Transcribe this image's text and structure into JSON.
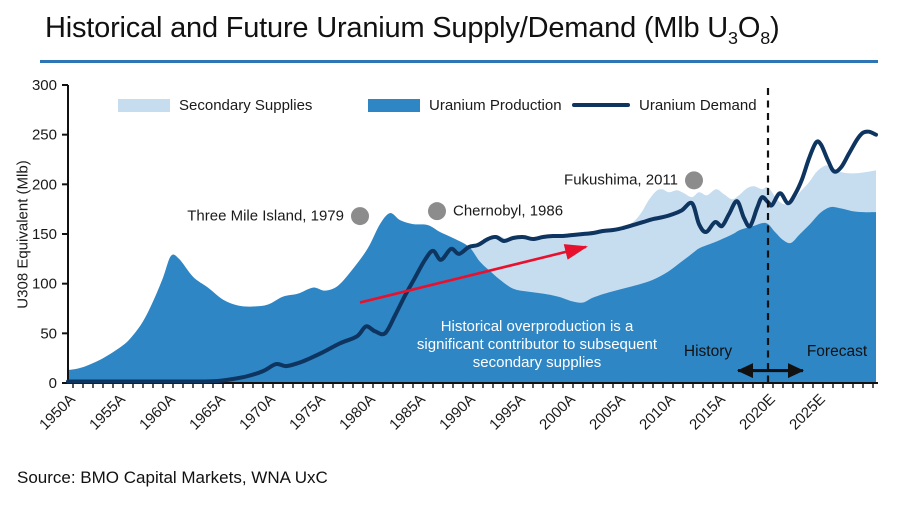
{
  "title": {
    "main": "Historical and Future Uranium Supply/Demand (Mlb U",
    "sub_a": "3",
    "mid": "O",
    "sub_b": "8",
    "end": ")"
  },
  "source": "Source: BMO Capital Markets, WNA UxC",
  "chart_data": {
    "type": "area",
    "title": "Historical and Future Uranium Supply/Demand (Mlb U3O8)",
    "xlabel": "",
    "ylabel": "U308 Equivalent (Mlb)",
    "x_range": [
      1949.5,
      2030.5
    ],
    "y_range": [
      0,
      300
    ],
    "y_ticks": [
      0,
      50,
      100,
      150,
      200,
      250,
      300
    ],
    "x_ticks": [
      {
        "year": 1950,
        "label": "1950A"
      },
      {
        "year": 1955,
        "label": "1955A"
      },
      {
        "year": 1960,
        "label": "1960A"
      },
      {
        "year": 1965,
        "label": "1965A"
      },
      {
        "year": 1970,
        "label": "1970A"
      },
      {
        "year": 1975,
        "label": "1975A"
      },
      {
        "year": 1980,
        "label": "1980A"
      },
      {
        "year": 1985,
        "label": "1985A"
      },
      {
        "year": 1990,
        "label": "1990A"
      },
      {
        "year": 1995,
        "label": "1995A"
      },
      {
        "year": 2000,
        "label": "2000A"
      },
      {
        "year": 2005,
        "label": "2005A"
      },
      {
        "year": 2010,
        "label": "2010A"
      },
      {
        "year": 2015,
        "label": "2015A"
      },
      {
        "year": 2020,
        "label": "2020E"
      },
      {
        "year": 2025,
        "label": "2025E"
      }
    ],
    "minor_tick_step": 1,
    "grid": false,
    "legend_position": "top-inside",
    "legend": [
      {
        "label": "Secondary Supplies",
        "swatch": "area-light"
      },
      {
        "label": "Uranium Production",
        "swatch": "area-medium"
      },
      {
        "label": "Uranium Demand",
        "swatch": "line"
      }
    ],
    "colors": {
      "secondary_supplies": "#C6DCEF",
      "uranium_production": "#2E86C5",
      "uranium_demand": "#0E3460",
      "title_rule": "#2E75B6",
      "event_dot": "#8C8C8C",
      "red_arrow": "#E8112D",
      "axis": "#111111"
    },
    "series": [
      {
        "name": "Uranium Production",
        "type": "area",
        "points": [
          [
            1949.5,
            13
          ],
          [
            1951,
            16
          ],
          [
            1953,
            25
          ],
          [
            1955,
            38
          ],
          [
            1956,
            48
          ],
          [
            1957,
            62
          ],
          [
            1958,
            82
          ],
          [
            1959,
            106
          ],
          [
            1959.8,
            128
          ],
          [
            1960.6,
            125
          ],
          [
            1962,
            107
          ],
          [
            1963.5,
            96
          ],
          [
            1965,
            84
          ],
          [
            1966.5,
            78
          ],
          [
            1968,
            77
          ],
          [
            1969.5,
            79
          ],
          [
            1971,
            87
          ],
          [
            1972.5,
            90
          ],
          [
            1974,
            96
          ],
          [
            1975.2,
            93
          ],
          [
            1976.5,
            98
          ],
          [
            1978,
            115
          ],
          [
            1979.5,
            136
          ],
          [
            1980.7,
            160
          ],
          [
            1981.7,
            171
          ],
          [
            1982.7,
            164
          ],
          [
            1984,
            160
          ],
          [
            1985.5,
            159
          ],
          [
            1986.7,
            152
          ],
          [
            1988,
            146
          ],
          [
            1989.6,
            137
          ],
          [
            1990.7,
            122
          ],
          [
            1992,
            110
          ],
          [
            1992.7,
            104
          ],
          [
            1994,
            95
          ],
          [
            1995.5,
            92
          ],
          [
            1997,
            90
          ],
          [
            1998.5,
            87
          ],
          [
            2000,
            82
          ],
          [
            2001,
            81
          ],
          [
            2002,
            86
          ],
          [
            2003.5,
            91
          ],
          [
            2005,
            95
          ],
          [
            2006.5,
            99
          ],
          [
            2008,
            104
          ],
          [
            2009.5,
            112
          ],
          [
            2010.7,
            121
          ],
          [
            2012,
            131
          ],
          [
            2012.7,
            136
          ],
          [
            2014,
            141
          ],
          [
            2014.7,
            144
          ],
          [
            2016,
            150
          ],
          [
            2016.7,
            154
          ],
          [
            2018,
            158
          ],
          [
            2019.3,
            161
          ],
          [
            2020.2,
            152
          ],
          [
            2021,
            144
          ],
          [
            2021.8,
            141
          ],
          [
            2022.7,
            150
          ],
          [
            2023.7,
            160
          ],
          [
            2024.7,
            171
          ],
          [
            2025.7,
            177
          ],
          [
            2026.7,
            176
          ],
          [
            2028,
            173
          ],
          [
            2029,
            172
          ],
          [
            2030.3,
            172
          ]
        ]
      },
      {
        "name": "Secondary Supplies",
        "type": "area-top",
        "points": [
          [
            1989.6,
            137
          ],
          [
            1990.5,
            141
          ],
          [
            1991.5,
            146
          ],
          [
            1992.5,
            148
          ],
          [
            1993.2,
            146
          ],
          [
            1994,
            147
          ],
          [
            1995,
            148
          ],
          [
            1996,
            147
          ],
          [
            1997,
            148
          ],
          [
            1998,
            149
          ],
          [
            1999,
            149
          ],
          [
            2000,
            150
          ],
          [
            2001,
            151
          ],
          [
            2002,
            152
          ],
          [
            2003,
            154
          ],
          [
            2004,
            155
          ],
          [
            2005,
            157
          ],
          [
            2006,
            162
          ],
          [
            2006.8,
            171
          ],
          [
            2007.5,
            183
          ],
          [
            2008.3,
            193
          ],
          [
            2008.9,
            195
          ],
          [
            2009.6,
            192
          ],
          [
            2010.4,
            194
          ],
          [
            2011.1,
            191
          ],
          [
            2011.9,
            187
          ],
          [
            2012.6,
            192
          ],
          [
            2013.4,
            189
          ],
          [
            2014.3,
            195
          ],
          [
            2015.1,
            190
          ],
          [
            2015.9,
            185
          ],
          [
            2016.6,
            189
          ],
          [
            2017.4,
            196
          ],
          [
            2018.1,
            198
          ],
          [
            2018.9,
            195
          ],
          [
            2019.5,
            197
          ],
          [
            2020.4,
            185
          ],
          [
            2021.1,
            180
          ],
          [
            2021.9,
            182
          ],
          [
            2022.6,
            191
          ],
          [
            2023.6,
            202
          ],
          [
            2024.4,
            213
          ],
          [
            2025.3,
            219
          ],
          [
            2026.1,
            216
          ],
          [
            2026.9,
            212
          ],
          [
            2028,
            211
          ],
          [
            2029.1,
            212
          ],
          [
            2030.3,
            214
          ]
        ]
      },
      {
        "name": "Uranium Demand",
        "type": "line",
        "points": [
          [
            1949.5,
            1.5
          ],
          [
            1956,
            1.5
          ],
          [
            1960,
            1.5
          ],
          [
            1963,
            1.5
          ],
          [
            1964.5,
            2
          ],
          [
            1966,
            4
          ],
          [
            1967.5,
            7
          ],
          [
            1969,
            12
          ],
          [
            1970.3,
            19
          ],
          [
            1971.3,
            17
          ],
          [
            1972.5,
            20
          ],
          [
            1973.5,
            24
          ],
          [
            1975,
            31
          ],
          [
            1976.7,
            40
          ],
          [
            1978.4,
            47
          ],
          [
            1979.3,
            57
          ],
          [
            1980.2,
            52
          ],
          [
            1981.2,
            50
          ],
          [
            1982.2,
            68
          ],
          [
            1983.2,
            88
          ],
          [
            1984.2,
            106
          ],
          [
            1985.2,
            124
          ],
          [
            1986,
            133
          ],
          [
            1986.8,
            124
          ],
          [
            1987.8,
            135
          ],
          [
            1988.6,
            130
          ],
          [
            1989.6,
            137
          ],
          [
            1990.5,
            139
          ],
          [
            1991.5,
            145
          ],
          [
            1992.3,
            147
          ],
          [
            1993.1,
            143
          ],
          [
            1994,
            146
          ],
          [
            1995,
            147
          ],
          [
            1996,
            145
          ],
          [
            1997,
            147
          ],
          [
            1998,
            148
          ],
          [
            1999,
            148
          ],
          [
            2000,
            149
          ],
          [
            2001,
            150
          ],
          [
            2002,
            151
          ],
          [
            2003,
            153
          ],
          [
            2004,
            154
          ],
          [
            2005,
            156
          ],
          [
            2006,
            159
          ],
          [
            2007,
            162
          ],
          [
            2008,
            165
          ],
          [
            2009,
            167
          ],
          [
            2010,
            170
          ],
          [
            2010.9,
            174
          ],
          [
            2011.9,
            181
          ],
          [
            2012.6,
            160
          ],
          [
            2013.3,
            152
          ],
          [
            2014.2,
            162
          ],
          [
            2014.9,
            158
          ],
          [
            2015.6,
            170
          ],
          [
            2016.4,
            183
          ],
          [
            2017.1,
            166
          ],
          [
            2017.7,
            158
          ],
          [
            2018.4,
            176
          ],
          [
            2018.9,
            187
          ],
          [
            2019.5,
            182
          ],
          [
            2019.9,
            179
          ],
          [
            2020.7,
            191
          ],
          [
            2021.5,
            181
          ],
          [
            2022.2,
            190
          ],
          [
            2022.9,
            205
          ],
          [
            2023.6,
            226
          ],
          [
            2024.3,
            242
          ],
          [
            2024.8,
            240
          ],
          [
            2025.5,
            224
          ],
          [
            2026.1,
            213
          ],
          [
            2026.8,
            217
          ],
          [
            2027.6,
            231
          ],
          [
            2028.4,
            245
          ],
          [
            2029,
            252
          ],
          [
            2029.6,
            253
          ],
          [
            2030.3,
            250
          ]
        ]
      }
    ],
    "annotations": {
      "divider": {
        "year": 2019.5,
        "top_value": 297,
        "bottom_value": 0
      },
      "events": [
        {
          "label": "Three Mile Island, 1979",
          "year": 1978.7,
          "value": 168,
          "side": "left"
        },
        {
          "label": "Chernobyl, 1986",
          "year": 1986.4,
          "value": 173,
          "side": "right"
        },
        {
          "label": "Fukushima, 2011",
          "year": 2012.1,
          "value": 204,
          "side": "left"
        }
      ],
      "note": {
        "lines": [
          "Historical overproduction is a",
          "significant contributor to subsequent",
          "secondary supplies"
        ],
        "year": 1996.4,
        "value": 38
      },
      "red_arrow": {
        "from_year": 1978.7,
        "from_value": 81,
        "to_year": 2001.3,
        "to_value": 137
      },
      "history_label": {
        "text": "History",
        "year": 2013.5,
        "value": 31
      },
      "forecast_label": {
        "text": "Forecast",
        "year": 2026.4,
        "value": 31
      },
      "phase_arrow": {
        "from_year": 2016.5,
        "to_year": 2023.0,
        "value": 12.5
      }
    }
  }
}
